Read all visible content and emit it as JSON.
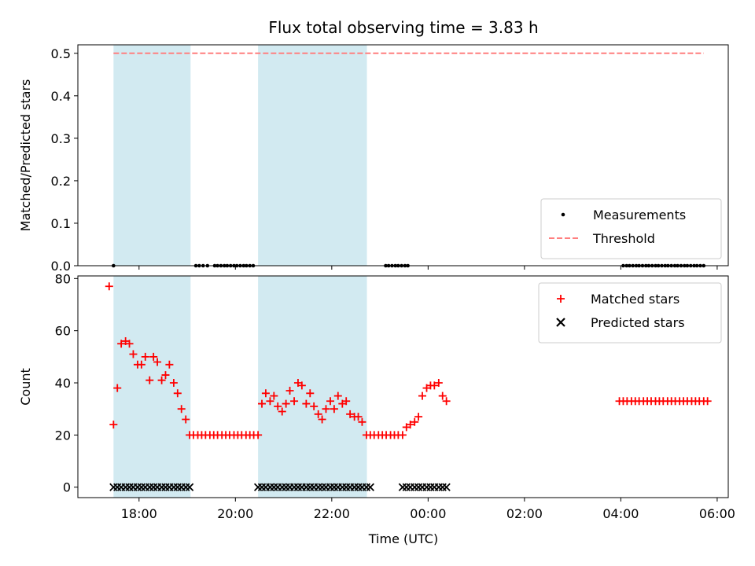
{
  "chart_data": {
    "type": "scatter",
    "title": "Flux total observing time = 3.83 h",
    "xlabel": "Time (UTC)",
    "x_unit": "hours since 00:00 UTC of the first day (values above 24 fall on the next day)",
    "xlim": [
      16.73,
      30.23
    ],
    "x_ticks": [
      {
        "value": 18,
        "label": "18:00"
      },
      {
        "value": 20,
        "label": "20:00"
      },
      {
        "value": 22,
        "label": "22:00"
      },
      {
        "value": 24,
        "label": "00:00"
      },
      {
        "value": 26,
        "label": "02:00"
      },
      {
        "value": 28,
        "label": "04:00"
      },
      {
        "value": 30,
        "label": "06:00"
      }
    ],
    "shaded_intervals": [
      [
        17.47,
        19.07
      ],
      [
        20.47,
        22.73
      ]
    ],
    "shade_color": "#add8e6",
    "panels": [
      {
        "name": "top",
        "ylabel": "Matched/Predicted stars",
        "ylim": [
          0,
          0.52
        ],
        "y_ticks": [
          "0.0",
          "0.1",
          "0.2",
          "0.3",
          "0.4",
          "0.5"
        ],
        "series": [
          {
            "name": "Measurements",
            "marker": "dot",
            "color": "#000000",
            "x": [
              17.47,
              19.18,
              19.25,
              19.33,
              19.42,
              19.57,
              19.63,
              19.7,
              19.77,
              19.83,
              19.9,
              19.97,
              20.03,
              20.1,
              20.17,
              20.23,
              20.3,
              20.37,
              23.12,
              23.18,
              23.25,
              23.32,
              23.38,
              23.45,
              23.52,
              23.58,
              28.05,
              28.12,
              28.18,
              28.25,
              28.32,
              28.38,
              28.45,
              28.52,
              28.58,
              28.65,
              28.72,
              28.78,
              28.85,
              28.92,
              28.98,
              29.05,
              29.12,
              29.18,
              29.25,
              29.32,
              29.38,
              29.45,
              29.52,
              29.58,
              29.65,
              29.72
            ],
            "y": [
              0,
              0,
              0,
              0,
              0,
              0,
              0,
              0,
              0,
              0,
              0,
              0,
              0,
              0,
              0,
              0,
              0,
              0,
              0,
              0,
              0,
              0,
              0,
              0,
              0,
              0,
              0,
              0,
              0,
              0,
              0,
              0,
              0,
              0,
              0,
              0,
              0,
              0,
              0,
              0,
              0,
              0,
              0,
              0,
              0,
              0,
              0,
              0,
              0,
              0,
              0,
              0
            ]
          },
          {
            "name": "Threshold",
            "marker": "dashed-line",
            "color": "#ff7f7f",
            "x": [
              17.47,
              29.72
            ],
            "y": [
              0.5,
              0.5
            ]
          }
        ],
        "legend": {
          "placement": "lower right",
          "entries": [
            "Measurements",
            "Threshold"
          ]
        }
      },
      {
        "name": "bottom",
        "ylabel": "Count",
        "ylim": [
          -4,
          81
        ],
        "y_ticks": [
          "0",
          "20",
          "40",
          "60",
          "80"
        ],
        "series": [
          {
            "name": "Matched stars",
            "marker": "plus",
            "color": "#ff0000",
            "x": [
              17.38,
              17.47,
              17.55,
              17.63,
              17.72,
              17.8,
              17.88,
              17.97,
              18.05,
              18.13,
              18.22,
              18.3,
              18.38,
              18.47,
              18.55,
              18.63,
              18.72,
              18.8,
              18.88,
              18.97,
              19.05,
              19.13,
              19.22,
              19.3,
              19.38,
              19.47,
              19.55,
              19.63,
              19.72,
              19.8,
              19.88,
              19.97,
              20.05,
              20.13,
              20.22,
              20.3,
              20.38,
              20.47,
              20.55,
              20.63,
              20.72,
              20.8,
              20.88,
              20.97,
              21.05,
              21.13,
              21.22,
              21.3,
              21.38,
              21.47,
              21.55,
              21.63,
              21.72,
              21.8,
              21.88,
              21.97,
              22.05,
              22.13,
              22.22,
              22.3,
              22.38,
              22.47,
              22.55,
              22.63,
              22.72,
              22.8,
              22.88,
              22.97,
              23.05,
              23.13,
              23.22,
              23.3,
              23.38,
              23.47,
              23.55,
              23.63,
              23.72,
              23.8,
              23.88,
              23.97,
              24.05,
              24.13,
              24.22,
              24.3,
              24.38,
              27.97,
              28.05,
              28.13,
              28.22,
              28.3,
              28.38,
              28.47,
              28.55,
              28.63,
              28.72,
              28.8,
              28.88,
              28.97,
              29.05,
              29.13,
              29.22,
              29.3,
              29.38,
              29.47,
              29.55,
              29.63,
              29.72,
              29.8
            ],
            "y": [
              77,
              24,
              38,
              55,
              56,
              55,
              51,
              47,
              47,
              50,
              41,
              50,
              48,
              41,
              43,
              47,
              40,
              36,
              30,
              26,
              20,
              20,
              20,
              20,
              20,
              20,
              20,
              20,
              20,
              20,
              20,
              20,
              20,
              20,
              20,
              20,
              20,
              20,
              32,
              36,
              33,
              35,
              31,
              29,
              32,
              37,
              33,
              40,
              39,
              32,
              36,
              31,
              28,
              26,
              30,
              33,
              30,
              35,
              32,
              33,
              28,
              27,
              27,
              25,
              20,
              20,
              20,
              20,
              20,
              20,
              20,
              20,
              20,
              20,
              23,
              24,
              25,
              27,
              35,
              38,
              39,
              39,
              40,
              35,
              33,
              33,
              33,
              33,
              33,
              33,
              33,
              33,
              33,
              33,
              33,
              33,
              33,
              33,
              33,
              33,
              33,
              33,
              33,
              33,
              33,
              33,
              33,
              33
            ]
          },
          {
            "name": "Predicted stars",
            "marker": "cross",
            "color": "#000000",
            "x": [
              17.47,
              17.55,
              17.63,
              17.72,
              17.8,
              17.88,
              17.97,
              18.05,
              18.13,
              18.22,
              18.3,
              18.38,
              18.47,
              18.55,
              18.63,
              18.72,
              18.8,
              18.88,
              18.97,
              19.05,
              20.47,
              20.55,
              20.63,
              20.72,
              20.8,
              20.88,
              20.97,
              21.05,
              21.13,
              21.22,
              21.3,
              21.38,
              21.47,
              21.55,
              21.63,
              21.72,
              21.8,
              21.88,
              21.97,
              22.05,
              22.13,
              22.22,
              22.3,
              22.38,
              22.47,
              22.55,
              22.63,
              22.72,
              22.8,
              23.47,
              23.55,
              23.63,
              23.72,
              23.8,
              23.88,
              23.97,
              24.05,
              24.13,
              24.22,
              24.3,
              24.38
            ],
            "y": [
              0,
              0,
              0,
              0,
              0,
              0,
              0,
              0,
              0,
              0,
              0,
              0,
              0,
              0,
              0,
              0,
              0,
              0,
              0,
              0,
              0,
              0,
              0,
              0,
              0,
              0,
              0,
              0,
              0,
              0,
              0,
              0,
              0,
              0,
              0,
              0,
              0,
              0,
              0,
              0,
              0,
              0,
              0,
              0,
              0,
              0,
              0,
              0,
              0,
              0,
              0,
              0,
              0,
              0,
              0,
              0,
              0,
              0,
              0,
              0,
              0
            ]
          }
        ],
        "legend": {
          "placement": "upper right",
          "entries": [
            "Matched stars",
            "Predicted stars"
          ]
        }
      }
    ]
  }
}
